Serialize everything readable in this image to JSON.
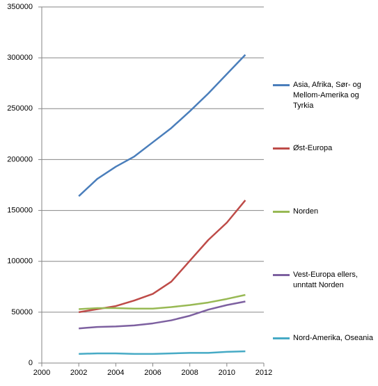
{
  "chart_data": {
    "type": "line",
    "x": [
      2002,
      2003,
      2004,
      2005,
      2006,
      2007,
      2008,
      2009,
      2010,
      2011
    ],
    "series": [
      {
        "name": "Asia, Afrika, Sør- og Mellom-Amerika og Tyrkia",
        "color": "#4a7ebb",
        "values": [
          164000,
          181000,
          193000,
          203000,
          217000,
          231000,
          247500,
          265000,
          284000,
          303000
        ]
      },
      {
        "name": "Øst-Europa",
        "color": "#be4b48",
        "values": [
          50000,
          53000,
          56000,
          61500,
          68000,
          80000,
          100500,
          121000,
          138000,
          160000
        ]
      },
      {
        "name": "Norden",
        "color": "#98b954",
        "values": [
          53000,
          54000,
          54000,
          53500,
          53500,
          55000,
          57000,
          59500,
          63000,
          67000
        ]
      },
      {
        "name": "Vest-Europa ellers, unntatt Norden",
        "color": "#7d60a0",
        "values": [
          34000,
          35500,
          36000,
          37000,
          39000,
          42000,
          46500,
          52500,
          57000,
          60500
        ]
      },
      {
        "name": "Nord-Amerika, Oseania",
        "color": "#46aac5",
        "values": [
          9000,
          9500,
          9500,
          9000,
          9000,
          9500,
          10000,
          10000,
          11000,
          11500
        ]
      }
    ],
    "xlim": [
      2000,
      2012
    ],
    "xticks": [
      2000,
      2002,
      2004,
      2006,
      2008,
      2010,
      2012
    ],
    "ylim": [
      0,
      350000
    ],
    "yticks": [
      0,
      50000,
      100000,
      150000,
      200000,
      250000,
      300000,
      350000
    ],
    "grid": true,
    "legend": "right"
  }
}
